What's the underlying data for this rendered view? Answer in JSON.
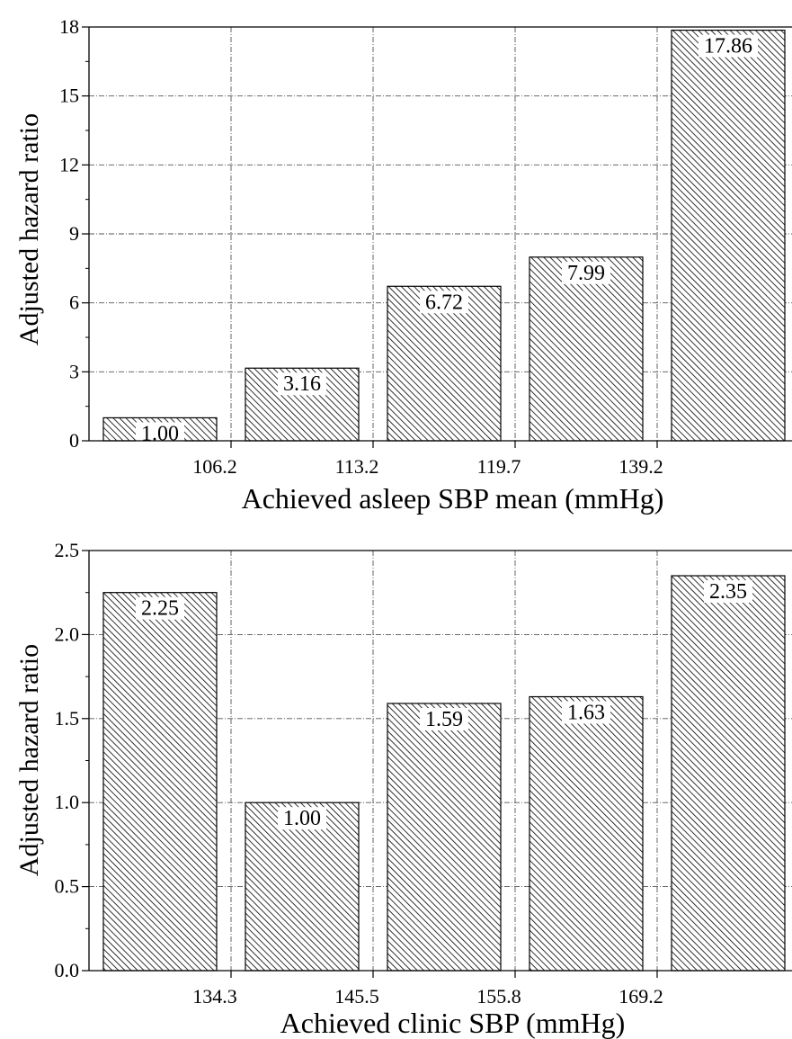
{
  "chart_data": [
    {
      "type": "bar",
      "categories": [
        "",
        "",
        "",
        "",
        ""
      ],
      "x_tick_labels": [
        "106.2",
        "113.2",
        "119.7",
        "139.2"
      ],
      "values": [
        1.0,
        3.16,
        6.72,
        7.99,
        17.86
      ],
      "data_labels": [
        "1.00",
        "3.16",
        "6.72",
        "7.99",
        "17.86"
      ],
      "title": "",
      "xlabel": "Achieved asleep SBP mean (mmHg)",
      "ylabel": "Adjusted hazard ratio",
      "ylim": [
        0,
        18
      ],
      "y_ticks": [
        "0",
        "3",
        "6",
        "9",
        "12",
        "15",
        "18"
      ],
      "grid": true,
      "fill_pattern": "diagonal-hatch"
    },
    {
      "type": "bar",
      "categories": [
        "",
        "",
        "",
        "",
        ""
      ],
      "x_tick_labels": [
        "134.3",
        "145.5",
        "155.8",
        "169.2"
      ],
      "values": [
        2.25,
        1.0,
        1.59,
        1.63,
        2.35
      ],
      "data_labels": [
        "2.25",
        "1.00",
        "1.59",
        "1.63",
        "2.35"
      ],
      "title": "",
      "xlabel": "Achieved clinic SBP (mmHg)",
      "ylabel": "Adjusted hazard ratio",
      "ylim": [
        0,
        2.5
      ],
      "y_ticks": [
        "0.0",
        "0.5",
        "1.0",
        "1.5",
        "2.0",
        "2.5"
      ],
      "grid": true,
      "fill_pattern": "diagonal-hatch"
    }
  ],
  "colors": {
    "bar_stroke": "#000000",
    "hatch": "#000000",
    "grid": "#555555",
    "label_bg": "#ffffff"
  }
}
